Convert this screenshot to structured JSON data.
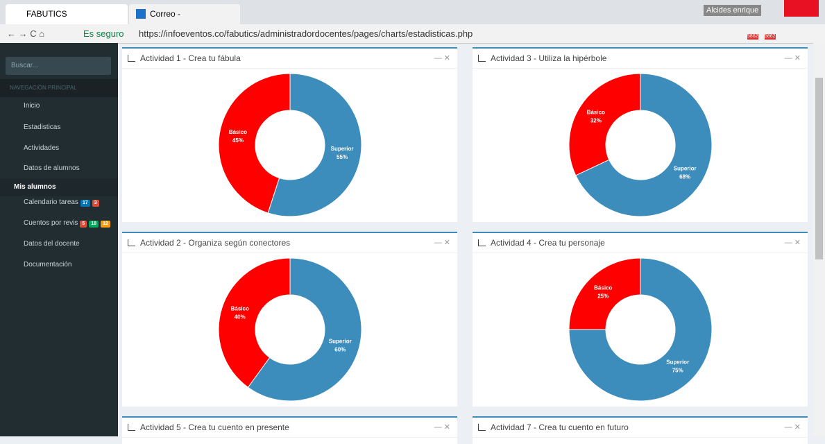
{
  "browser": {
    "tabs": [
      "FABUTICS",
      "Correo - alkikegt@hotma"
    ],
    "user": "Alcides enrique",
    "secure": "Es seguro",
    "url": "https://infoeventos.co/fabutics/administradordocentes/pages/charts/estadisticas.php",
    "mail_badge": "5862"
  },
  "sidebar": {
    "search": "Buscar...",
    "section": "NAVEGACIÓN PRINCIPAL",
    "items": [
      {
        "label": "Inicio"
      },
      {
        "label": "Estadisticas"
      },
      {
        "label": "Actividades"
      },
      {
        "label": "Datos de alumnos"
      },
      {
        "label": "Mis alumnos"
      },
      {
        "label": "Calendario tareas",
        "badges": [
          "17",
          "3"
        ]
      },
      {
        "label": "Cuentos por revis",
        "badges": [
          "5",
          "18",
          "12"
        ]
      },
      {
        "label": "Datos del docente"
      },
      {
        "label": "Documentación"
      }
    ]
  },
  "chart_data": [
    {
      "type": "pie",
      "title": "Actividad 1 - Crea tu fábula",
      "categories": [
        "Superior",
        "Básico"
      ],
      "values": [
        55,
        45
      ],
      "value_labels": [
        "55%",
        "45%"
      ],
      "colors": [
        "#3c8dbc",
        "#ff0000"
      ]
    },
    {
      "type": "pie",
      "title": "Actividad 3 - Utiliza la hipérbole",
      "categories": [
        "Superior",
        "Básico"
      ],
      "values": [
        68,
        32
      ],
      "value_labels": [
        "68%",
        "32%"
      ],
      "colors": [
        "#3c8dbc",
        "#ff0000"
      ]
    },
    {
      "type": "pie",
      "title": "Actividad 2 - Organiza según conectores",
      "categories": [
        "Superior",
        "Básico"
      ],
      "values": [
        60,
        40
      ],
      "value_labels": [
        "60%",
        "40%"
      ],
      "colors": [
        "#3c8dbc",
        "#ff0000"
      ]
    },
    {
      "type": "pie",
      "title": "Actividad 4 - Crea tu personaje",
      "categories": [
        "Superior",
        "Básico"
      ],
      "values": [
        75,
        25
      ],
      "value_labels": [
        "75%",
        "25%"
      ],
      "colors": [
        "#3c8dbc",
        "#ff0000"
      ]
    }
  ],
  "more_panels": [
    "Actividad 5 - Crea tu cuento en presente",
    "Actividad 7 - Crea tu cuento en futuro"
  ]
}
